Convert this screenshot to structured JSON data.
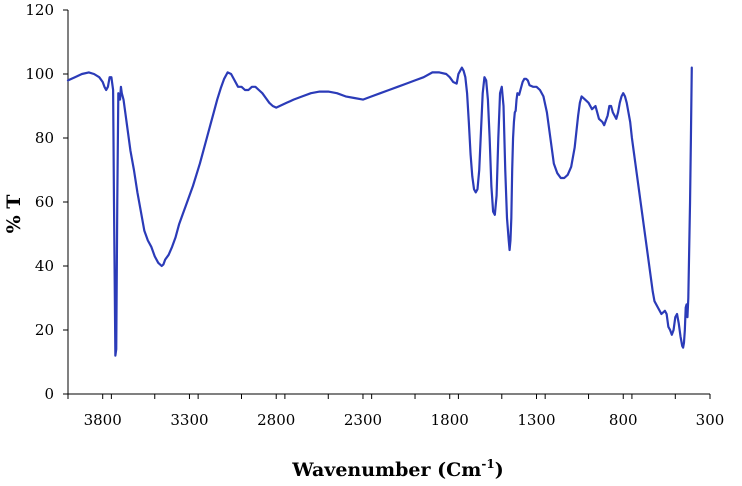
{
  "chart_data": {
    "type": "line",
    "title": "",
    "xlabel": "Wavenumber (Cm",
    "xlabel_sup": "-1",
    "xlabel_suffix": ")",
    "ylabel": "% T",
    "xlim": [
      4000,
      300
    ],
    "ylim": [
      0,
      120
    ],
    "x_reversed": true,
    "grid": false,
    "legend": "none",
    "xticks": [
      "3800",
      "3300",
      "2800",
      "2300",
      "1800",
      "1300",
      "800",
      "300"
    ],
    "yticks": [
      "0",
      "20",
      "40",
      "60",
      "80",
      "100",
      "120"
    ],
    "line_color": "#2b3bb8",
    "series": [
      {
        "x": [
          4000,
          3960,
          3920,
          3880,
          3850,
          3820,
          3800,
          3790,
          3780,
          3770,
          3760,
          3750,
          3740,
          3735,
          3727,
          3722,
          3716,
          3710,
          3700,
          3695,
          3690,
          3680,
          3670,
          3660,
          3640,
          3620,
          3600,
          3580,
          3560,
          3540,
          3520,
          3500,
          3480,
          3460,
          3450,
          3440,
          3420,
          3400,
          3380,
          3360,
          3340,
          3320,
          3300,
          3280,
          3260,
          3240,
          3220,
          3200,
          3180,
          3160,
          3140,
          3120,
          3100,
          3080,
          3060,
          3040,
          3020,
          3000,
          2980,
          2960,
          2940,
          2920,
          2900,
          2880,
          2860,
          2840,
          2820,
          2800,
          2780,
          2760,
          2740,
          2720,
          2700,
          2650,
          2600,
          2550,
          2500,
          2450,
          2400,
          2350,
          2300,
          2250,
          2200,
          2150,
          2100,
          2050,
          2000,
          1950,
          1900,
          1860,
          1820,
          1800,
          1780,
          1760,
          1750,
          1740,
          1730,
          1720,
          1710,
          1700,
          1690,
          1680,
          1670,
          1660,
          1650,
          1640,
          1630,
          1620,
          1610,
          1600,
          1590,
          1580,
          1570,
          1560,
          1550,
          1540,
          1530,
          1520,
          1510,
          1500,
          1490,
          1480,
          1470,
          1460,
          1455,
          1450,
          1445,
          1440,
          1435,
          1430,
          1425,
          1420,
          1415,
          1410,
          1400,
          1390,
          1380,
          1370,
          1360,
          1350,
          1340,
          1320,
          1300,
          1280,
          1260,
          1240,
          1220,
          1200,
          1180,
          1160,
          1140,
          1120,
          1100,
          1090,
          1080,
          1070,
          1060,
          1050,
          1040,
          1020,
          1000,
          980,
          960,
          940,
          920,
          910,
          900,
          890,
          880,
          870,
          860,
          850,
          840,
          830,
          820,
          810,
          800,
          790,
          780,
          770,
          760,
          750,
          740,
          730,
          720,
          710,
          700,
          690,
          680,
          670,
          660,
          650,
          640,
          630,
          620,
          600,
          580,
          560,
          550,
          540,
          530,
          520,
          510,
          500,
          490,
          480,
          470,
          460,
          455,
          450,
          445,
          440,
          435,
          430,
          425,
          420,
          415,
          410,
          405
        ],
        "y": [
          98,
          99,
          100,
          100.5,
          100,
          99,
          97.5,
          96,
          95,
          96,
          99,
          99,
          95,
          60,
          12,
          14,
          60,
          94,
          92,
          96,
          94,
          92,
          88,
          84,
          76,
          70,
          63,
          57,
          51,
          48,
          46,
          43,
          41,
          40,
          40.5,
          42,
          43.5,
          46,
          49,
          53,
          56,
          59,
          62,
          65,
          68.5,
          72,
          76,
          80,
          84,
          88,
          92,
          95.5,
          98.5,
          100.5,
          100,
          98,
          96,
          96,
          95,
          95,
          96,
          96,
          95,
          94,
          92.5,
          91,
          90,
          89.5,
          90,
          90.5,
          91,
          91.5,
          92,
          93,
          94,
          94.5,
          94.5,
          94,
          93,
          92.5,
          92,
          93,
          94,
          95,
          96,
          97,
          98,
          99,
          100.5,
          100.5,
          100,
          99,
          97.5,
          97,
          100,
          101,
          102,
          101,
          99,
          94,
          85,
          75,
          68,
          64,
          63,
          64,
          70,
          82,
          94,
          99,
          98,
          92,
          80,
          65,
          57,
          56,
          62,
          80,
          94,
          96,
          90,
          70,
          55,
          48,
          45,
          48,
          55,
          70,
          80,
          85,
          88,
          88.5,
          92,
          94,
          93.5,
          95.5,
          97.5,
          98.5,
          98.5,
          98,
          96.5,
          96,
          96,
          95,
          93,
          88,
          80,
          72,
          69,
          67.5,
          67.5,
          68.5,
          71,
          74,
          77,
          82,
          87,
          91,
          93,
          92,
          91,
          89,
          90,
          86,
          85,
          84,
          85.5,
          87,
          90,
          90,
          88,
          87,
          86,
          88,
          91,
          93,
          94,
          93,
          91,
          88,
          85,
          80,
          76,
          72,
          68,
          64,
          60,
          56,
          52,
          48,
          44,
          40,
          36,
          32,
          29,
          27,
          25,
          26,
          25,
          21,
          20,
          18.5,
          20,
          24,
          25,
          22,
          18,
          15,
          14.5,
          16,
          20,
          27,
          28,
          24,
          30,
          45,
          60,
          80,
          102
        ]
      }
    ]
  }
}
